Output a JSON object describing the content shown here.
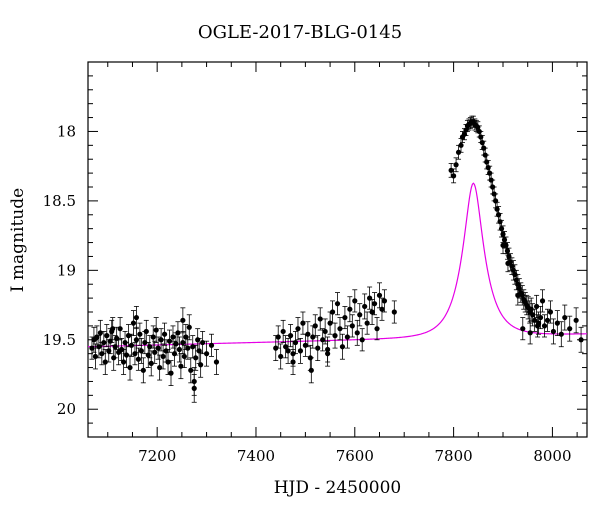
{
  "chart_data": {
    "type": "scatter",
    "title": "OGLE-2017-BLG-0145",
    "xlabel": "HJD - 2450000",
    "ylabel": "I magnitude",
    "xlim": [
      7060,
      8070
    ],
    "ylim": [
      20.2,
      17.5
    ],
    "y_inverted": true,
    "x_ticks": [
      7200,
      7400,
      7600,
      7800,
      8000
    ],
    "y_ticks": [
      18,
      18.5,
      19,
      19.5,
      20
    ],
    "x_tick_labels": [
      "7200",
      "7400",
      "7600",
      "7800",
      "8000"
    ],
    "y_tick_labels": [
      "18",
      "18.5",
      "19",
      "19.5",
      "20"
    ],
    "grid": false,
    "series": [
      {
        "kind": "points_with_errorbars",
        "color": "#000000",
        "points": [
          [
            7068,
            19.56,
            0.08
          ],
          [
            7072,
            19.5,
            0.09
          ],
          [
            7075,
            19.62,
            0.09
          ],
          [
            7078,
            19.48,
            0.08
          ],
          [
            7082,
            19.55,
            0.08
          ],
          [
            7085,
            19.45,
            0.09
          ],
          [
            7088,
            19.6,
            0.08
          ],
          [
            7092,
            19.52,
            0.08
          ],
          [
            7095,
            19.66,
            0.09
          ],
          [
            7098,
            19.47,
            0.08
          ],
          [
            7102,
            19.58,
            0.08
          ],
          [
            7105,
            19.51,
            0.09
          ],
          [
            7108,
            19.44,
            0.08
          ],
          [
            7112,
            19.63,
            0.09
          ],
          [
            7115,
            19.55,
            0.08
          ],
          [
            7118,
            19.49,
            0.08
          ],
          [
            7122,
            19.59,
            0.09
          ],
          [
            7125,
            19.42,
            0.08
          ],
          [
            7128,
            19.57,
            0.08
          ],
          [
            7132,
            19.66,
            0.09
          ],
          [
            7135,
            19.52,
            0.08
          ],
          [
            7138,
            19.61,
            0.09
          ],
          [
            7142,
            19.47,
            0.08
          ],
          [
            7145,
            19.7,
            0.09
          ],
          [
            7148,
            19.54,
            0.08
          ],
          [
            7152,
            19.38,
            0.09
          ],
          [
            7155,
            19.6,
            0.08
          ],
          [
            7158,
            19.5,
            0.09
          ],
          [
            7162,
            19.64,
            0.08
          ],
          [
            7165,
            19.46,
            0.08
          ],
          [
            7168,
            19.58,
            0.09
          ],
          [
            7172,
            19.72,
            0.09
          ],
          [
            7175,
            19.52,
            0.08
          ],
          [
            7178,
            19.44,
            0.08
          ],
          [
            7182,
            19.61,
            0.09
          ],
          [
            7185,
            19.55,
            0.08
          ],
          [
            7188,
            19.67,
            0.09
          ],
          [
            7192,
            19.48,
            0.08
          ],
          [
            7195,
            19.59,
            0.08
          ],
          [
            7198,
            19.43,
            0.09
          ],
          [
            7202,
            19.56,
            0.08
          ],
          [
            7205,
            19.7,
            0.09
          ],
          [
            7208,
            19.5,
            0.08
          ],
          [
            7212,
            19.62,
            0.09
          ],
          [
            7215,
            19.46,
            0.08
          ],
          [
            7218,
            19.58,
            0.08
          ],
          [
            7222,
            19.66,
            0.09
          ],
          [
            7225,
            19.51,
            0.08
          ],
          [
            7228,
            19.74,
            0.09
          ],
          [
            7232,
            19.48,
            0.08
          ],
          [
            7235,
            19.6,
            0.09
          ],
          [
            7238,
            19.53,
            0.08
          ],
          [
            7242,
            19.45,
            0.08
          ],
          [
            7245,
            19.57,
            0.09
          ],
          [
            7248,
            19.69,
            0.09
          ],
          [
            7252,
            19.52,
            0.08
          ],
          [
            7255,
            19.62,
            0.08
          ],
          [
            7258,
            19.48,
            0.09
          ],
          [
            7262,
            19.56,
            0.08
          ],
          [
            7265,
            19.41,
            0.09
          ],
          [
            7268,
            19.72,
            0.09
          ],
          [
            7272,
            19.55,
            0.08
          ],
          [
            7275,
            19.8,
            0.1
          ],
          [
            7278,
            19.63,
            0.09
          ],
          [
            7282,
            19.5,
            0.08
          ],
          [
            7285,
            19.58,
            0.09
          ],
          [
            7288,
            19.68,
            0.09
          ],
          [
            7292,
            19.52,
            0.08
          ],
          [
            7300,
            19.6,
            0.09
          ],
          [
            7310,
            19.54,
            0.08
          ],
          [
            7320,
            19.66,
            0.09
          ],
          [
            7158,
            19.34,
            0.08
          ],
          [
            7110,
            19.42,
            0.08
          ],
          [
            7252,
            19.36,
            0.09
          ],
          [
            7275,
            19.85,
            0.1
          ],
          [
            7440,
            19.56,
            0.09
          ],
          [
            7445,
            19.48,
            0.08
          ],
          [
            7450,
            19.62,
            0.09
          ],
          [
            7455,
            19.44,
            0.08
          ],
          [
            7460,
            19.55,
            0.08
          ],
          [
            7465,
            19.58,
            0.09
          ],
          [
            7470,
            19.47,
            0.08
          ],
          [
            7475,
            19.6,
            0.09
          ],
          [
            7480,
            19.52,
            0.08
          ],
          [
            7485,
            19.42,
            0.08
          ],
          [
            7490,
            19.58,
            0.09
          ],
          [
            7495,
            19.38,
            0.08
          ],
          [
            7500,
            19.54,
            0.08
          ],
          [
            7505,
            19.46,
            0.09
          ],
          [
            7510,
            19.63,
            0.09
          ],
          [
            7515,
            19.48,
            0.08
          ],
          [
            7520,
            19.4,
            0.08
          ],
          [
            7525,
            19.56,
            0.09
          ],
          [
            7530,
            19.35,
            0.08
          ],
          [
            7535,
            19.5,
            0.08
          ],
          [
            7540,
            19.44,
            0.09
          ],
          [
            7545,
            19.6,
            0.09
          ],
          [
            7550,
            19.38,
            0.08
          ],
          [
            7555,
            19.3,
            0.08
          ],
          [
            7560,
            19.47,
            0.09
          ],
          [
            7565,
            19.24,
            0.08
          ],
          [
            7570,
            19.42,
            0.08
          ],
          [
            7575,
            19.55,
            0.09
          ],
          [
            7580,
            19.34,
            0.08
          ],
          [
            7585,
            19.48,
            0.08
          ],
          [
            7590,
            19.28,
            0.09
          ],
          [
            7595,
            19.4,
            0.08
          ],
          [
            7600,
            19.22,
            0.08
          ],
          [
            7605,
            19.45,
            0.09
          ],
          [
            7610,
            19.32,
            0.08
          ],
          [
            7615,
            19.5,
            0.08
          ],
          [
            7620,
            19.26,
            0.09
          ],
          [
            7625,
            19.38,
            0.08
          ],
          [
            7630,
            19.2,
            0.08
          ],
          [
            7635,
            19.3,
            0.09
          ],
          [
            7640,
            19.24,
            0.08
          ],
          [
            7645,
            19.42,
            0.08
          ],
          [
            7650,
            19.18,
            0.09
          ],
          [
            7655,
            19.28,
            0.08
          ],
          [
            7660,
            19.22,
            0.08
          ],
          [
            7680,
            19.3,
            0.08
          ],
          [
            7475,
            19.66,
            0.09
          ],
          [
            7512,
            19.72,
            0.09
          ],
          [
            7545,
            19.57,
            0.09
          ],
          [
            7795,
            18.28,
            0.05
          ],
          [
            7800,
            18.32,
            0.05
          ],
          [
            7805,
            18.24,
            0.05
          ],
          [
            7810,
            18.15,
            0.05
          ],
          [
            7815,
            18.1,
            0.05
          ],
          [
            7818,
            18.04,
            0.04
          ],
          [
            7822,
            18.02,
            0.04
          ],
          [
            7825,
            17.99,
            0.04
          ],
          [
            7828,
            17.96,
            0.04
          ],
          [
            7831,
            17.95,
            0.04
          ],
          [
            7834,
            17.94,
            0.04
          ],
          [
            7837,
            17.93,
            0.04
          ],
          [
            7840,
            17.93,
            0.04
          ],
          [
            7843,
            17.95,
            0.04
          ],
          [
            7846,
            17.96,
            0.04
          ],
          [
            7849,
            17.97,
            0.04
          ],
          [
            7852,
            18.0,
            0.04
          ],
          [
            7855,
            18.04,
            0.04
          ],
          [
            7858,
            18.08,
            0.05
          ],
          [
            7861,
            18.12,
            0.05
          ],
          [
            7864,
            18.17,
            0.05
          ],
          [
            7867,
            18.22,
            0.05
          ],
          [
            7870,
            18.26,
            0.05
          ],
          [
            7873,
            18.3,
            0.05
          ],
          [
            7876,
            18.35,
            0.05
          ],
          [
            7879,
            18.4,
            0.05
          ],
          [
            7882,
            18.45,
            0.05
          ],
          [
            7885,
            18.5,
            0.05
          ],
          [
            7888,
            18.56,
            0.05
          ],
          [
            7891,
            18.6,
            0.06
          ],
          [
            7894,
            18.65,
            0.06
          ],
          [
            7897,
            18.7,
            0.06
          ],
          [
            7900,
            18.74,
            0.06
          ],
          [
            7903,
            18.78,
            0.06
          ],
          [
            7906,
            18.82,
            0.06
          ],
          [
            7909,
            18.86,
            0.06
          ],
          [
            7912,
            18.9,
            0.06
          ],
          [
            7915,
            18.94,
            0.06
          ],
          [
            7918,
            18.97,
            0.06
          ],
          [
            7921,
            19.0,
            0.07
          ],
          [
            7924,
            19.03,
            0.07
          ],
          [
            7927,
            19.07,
            0.07
          ],
          [
            7930,
            19.1,
            0.07
          ],
          [
            7933,
            19.13,
            0.07
          ],
          [
            7936,
            19.16,
            0.07
          ],
          [
            7939,
            19.18,
            0.07
          ],
          [
            7942,
            19.21,
            0.07
          ],
          [
            7945,
            19.23,
            0.07
          ],
          [
            7948,
            19.25,
            0.07
          ],
          [
            7951,
            19.27,
            0.08
          ],
          [
            7954,
            19.3,
            0.08
          ],
          [
            7957,
            19.28,
            0.08
          ],
          [
            7960,
            19.32,
            0.08
          ],
          [
            7964,
            19.36,
            0.08
          ],
          [
            7968,
            19.26,
            0.08
          ],
          [
            7972,
            19.38,
            0.08
          ],
          [
            7976,
            19.34,
            0.08
          ],
          [
            7980,
            19.22,
            0.08
          ],
          [
            7984,
            19.4,
            0.08
          ],
          [
            7990,
            19.36,
            0.08
          ],
          [
            7996,
            19.3,
            0.08
          ],
          [
            8002,
            19.44,
            0.09
          ],
          [
            8010,
            19.38,
            0.09
          ],
          [
            8018,
            19.46,
            0.09
          ],
          [
            8025,
            19.34,
            0.09
          ],
          [
            8035,
            19.42,
            0.09
          ],
          [
            8048,
            19.36,
            0.09
          ],
          [
            8058,
            19.5,
            0.09
          ],
          [
            7940,
            19.42,
            0.08
          ],
          [
            7955,
            19.45,
            0.08
          ],
          [
            7970,
            19.4,
            0.08
          ],
          [
            7900,
            18.82,
            0.06
          ],
          [
            7910,
            18.95,
            0.06
          ],
          [
            7930,
            19.18,
            0.07
          ]
        ]
      },
      {
        "kind": "model_curve",
        "color": "#e600e6",
        "baseline_mag": 19.55,
        "baseline_slope_per_day": -9e-05,
        "t0": 7840,
        "u0": 0.38,
        "tE": 42
      }
    ]
  }
}
